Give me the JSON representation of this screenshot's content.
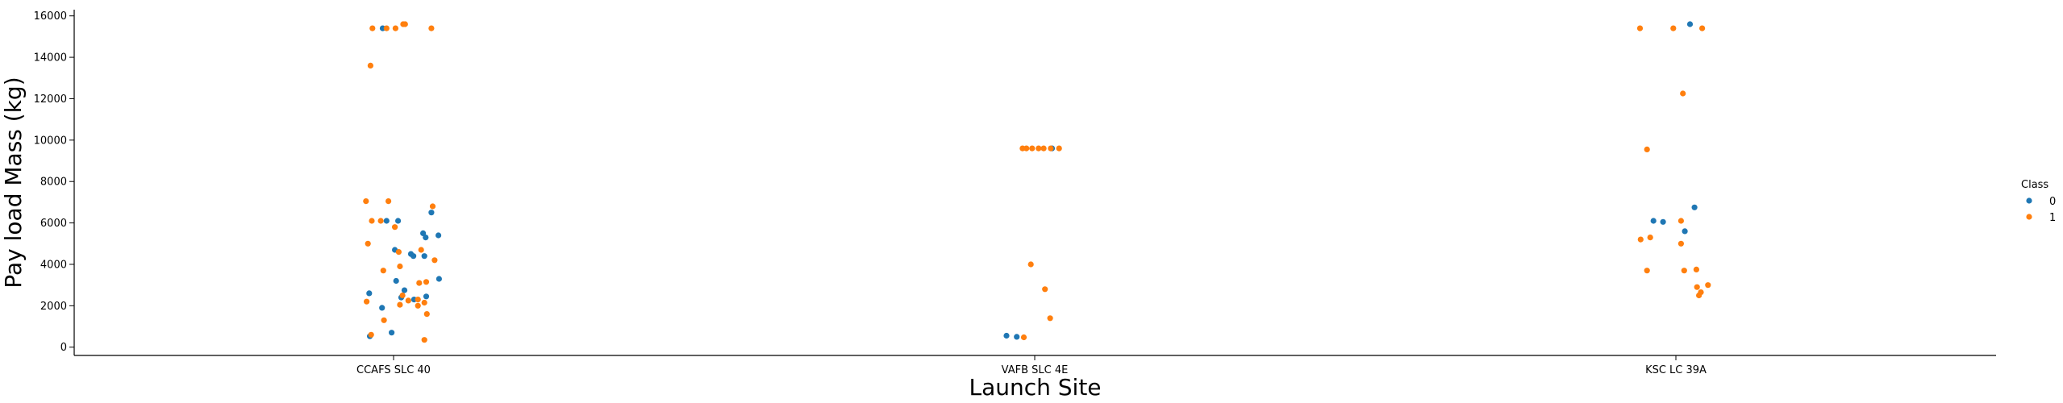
{
  "chart_data": {
    "type": "scatter",
    "title": "",
    "xlabel": "Launch Site",
    "ylabel": "Pay load Mass (kg)",
    "categories": [
      "CCAFS SLC 40",
      "VAFB SLC 4E",
      "KSC LC 39A"
    ],
    "ylim": [
      -400,
      16300
    ],
    "yticks": [
      0,
      2000,
      4000,
      6000,
      8000,
      10000,
      12000,
      14000,
      16000
    ],
    "grid": false,
    "legend": {
      "title": "Class",
      "placement": "right"
    },
    "series": [
      {
        "name": "0",
        "color": "#1f77b4",
        "points": [
          {
            "cat": 0,
            "j": -0.037,
            "y": 525
          },
          {
            "cat": 0,
            "j": -0.038,
            "y": 2600
          },
          {
            "cat": 0,
            "j": -0.018,
            "y": 1900
          },
          {
            "cat": 0,
            "j": -0.003,
            "y": 700
          },
          {
            "cat": 0,
            "j": 0.004,
            "y": 3200
          },
          {
            "cat": 0,
            "j": 0.002,
            "y": 4700
          },
          {
            "cat": 0,
            "j": 0.007,
            "y": 6100
          },
          {
            "cat": 0,
            "j": -0.011,
            "y": 6100
          },
          {
            "cat": 0,
            "j": 0.012,
            "y": 2400
          },
          {
            "cat": 0,
            "j": 0.017,
            "y": 2750
          },
          {
            "cat": 0,
            "j": 0.027,
            "y": 4500
          },
          {
            "cat": 0,
            "j": 0.031,
            "y": 4400
          },
          {
            "cat": 0,
            "j": 0.032,
            "y": 2300
          },
          {
            "cat": 0,
            "j": 0.046,
            "y": 5500
          },
          {
            "cat": 0,
            "j": 0.05,
            "y": 5300
          },
          {
            "cat": 0,
            "j": 0.048,
            "y": 4400
          },
          {
            "cat": 0,
            "j": 0.051,
            "y": 2450
          },
          {
            "cat": 0,
            "j": 0.059,
            "y": 6500
          },
          {
            "cat": 0,
            "j": 0.07,
            "y": 5400
          },
          {
            "cat": 0,
            "j": 0.071,
            "y": 3300
          },
          {
            "cat": 0,
            "j": -0.017,
            "y": 15400
          },
          {
            "cat": 1,
            "j": -0.044,
            "y": 553
          },
          {
            "cat": 1,
            "j": -0.028,
            "y": 500
          },
          {
            "cat": 1,
            "j": 0.027,
            "y": 9600
          },
          {
            "cat": 2,
            "j": 0.022,
            "y": 15600
          },
          {
            "cat": 2,
            "j": -0.035,
            "y": 6100
          },
          {
            "cat": 2,
            "j": -0.02,
            "y": 6050
          },
          {
            "cat": 2,
            "j": 0.014,
            "y": 5600
          },
          {
            "cat": 2,
            "j": 0.029,
            "y": 6750
          }
        ]
      },
      {
        "name": "1",
        "color": "#ff7f0e",
        "points": [
          {
            "cat": 0,
            "j": -0.033,
            "y": 15400
          },
          {
            "cat": 0,
            "j": -0.011,
            "y": 15400
          },
          {
            "cat": 0,
            "j": 0.003,
            "y": 15400
          },
          {
            "cat": 0,
            "j": 0.015,
            "y": 15600
          },
          {
            "cat": 0,
            "j": 0.018,
            "y": 15600
          },
          {
            "cat": 0,
            "j": 0.059,
            "y": 15400
          },
          {
            "cat": 0,
            "j": -0.036,
            "y": 13600
          },
          {
            "cat": 0,
            "j": -0.043,
            "y": 7050
          },
          {
            "cat": 0,
            "j": -0.008,
            "y": 7050
          },
          {
            "cat": 0,
            "j": 0.061,
            "y": 6800
          },
          {
            "cat": 0,
            "j": -0.034,
            "y": 6100
          },
          {
            "cat": 0,
            "j": -0.02,
            "y": 6100
          },
          {
            "cat": 0,
            "j": -0.04,
            "y": 5000
          },
          {
            "cat": 0,
            "j": 0.002,
            "y": 5800
          },
          {
            "cat": 0,
            "j": 0.008,
            "y": 4600
          },
          {
            "cat": 0,
            "j": 0.043,
            "y": 4700
          },
          {
            "cat": 0,
            "j": 0.064,
            "y": 4200
          },
          {
            "cat": 0,
            "j": 0.01,
            "y": 3900
          },
          {
            "cat": 0,
            "j": -0.016,
            "y": 3700
          },
          {
            "cat": 0,
            "j": 0.04,
            "y": 3100
          },
          {
            "cat": 0,
            "j": 0.051,
            "y": 3150
          },
          {
            "cat": 0,
            "j": 0.014,
            "y": 2500
          },
          {
            "cat": 0,
            "j": 0.023,
            "y": 2250
          },
          {
            "cat": 0,
            "j": 0.038,
            "y": 2300
          },
          {
            "cat": 0,
            "j": -0.042,
            "y": 2200
          },
          {
            "cat": 0,
            "j": 0.038,
            "y": 2000
          },
          {
            "cat": 0,
            "j": 0.048,
            "y": 2150
          },
          {
            "cat": 0,
            "j": 0.01,
            "y": 2050
          },
          {
            "cat": 0,
            "j": -0.015,
            "y": 1300
          },
          {
            "cat": 0,
            "j": 0.052,
            "y": 1600
          },
          {
            "cat": 0,
            "j": -0.035,
            "y": 600
          },
          {
            "cat": 0,
            "j": 0.048,
            "y": 350
          },
          {
            "cat": 1,
            "j": -0.019,
            "y": 9600
          },
          {
            "cat": 1,
            "j": -0.013,
            "y": 9600
          },
          {
            "cat": 1,
            "j": -0.004,
            "y": 9600
          },
          {
            "cat": 1,
            "j": 0.006,
            "y": 9600
          },
          {
            "cat": 1,
            "j": 0.014,
            "y": 9600
          },
          {
            "cat": 1,
            "j": 0.025,
            "y": 9600
          },
          {
            "cat": 1,
            "j": 0.038,
            "y": 9600
          },
          {
            "cat": 1,
            "j": -0.006,
            "y": 4000
          },
          {
            "cat": 1,
            "j": 0.016,
            "y": 2800
          },
          {
            "cat": 1,
            "j": 0.024,
            "y": 1400
          },
          {
            "cat": 1,
            "j": -0.017,
            "y": 475
          },
          {
            "cat": 2,
            "j": -0.056,
            "y": 15400
          },
          {
            "cat": 2,
            "j": -0.004,
            "y": 15400
          },
          {
            "cat": 2,
            "j": 0.041,
            "y": 15400
          },
          {
            "cat": 2,
            "j": 0.011,
            "y": 12250
          },
          {
            "cat": 2,
            "j": -0.045,
            "y": 9550
          },
          {
            "cat": 2,
            "j": -0.055,
            "y": 5200
          },
          {
            "cat": 2,
            "j": -0.04,
            "y": 5300
          },
          {
            "cat": 2,
            "j": -0.045,
            "y": 3700
          },
          {
            "cat": 2,
            "j": 0.008,
            "y": 6100
          },
          {
            "cat": 2,
            "j": 0.008,
            "y": 5000
          },
          {
            "cat": 2,
            "j": 0.013,
            "y": 3700
          },
          {
            "cat": 2,
            "j": 0.032,
            "y": 3750
          },
          {
            "cat": 2,
            "j": 0.033,
            "y": 2900
          },
          {
            "cat": 2,
            "j": 0.039,
            "y": 2650
          },
          {
            "cat": 2,
            "j": 0.036,
            "y": 2500
          },
          {
            "cat": 2,
            "j": 0.05,
            "y": 3000
          }
        ]
      }
    ]
  }
}
